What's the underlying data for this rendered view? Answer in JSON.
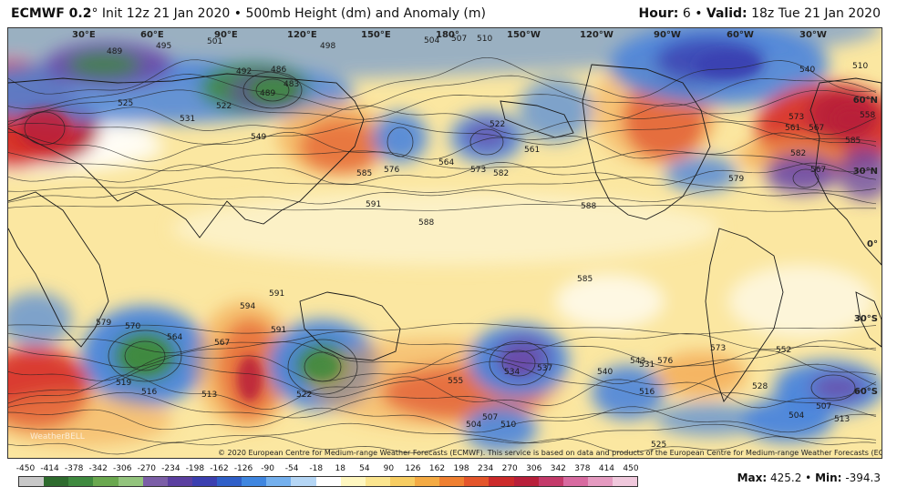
{
  "header": {
    "model": "ECMWF 0.2",
    "degree": "°",
    "init": "Init 12z 21 Jan 2020",
    "bullet": "•",
    "product": "500mb Height (dm) and Anomaly (m)",
    "hour_label": "Hour:",
    "hour_value": "6",
    "valid_label": "Valid:",
    "valid_value": "18z Tue 21 Jan 2020"
  },
  "longitude_labels": [
    "30°E",
    "60°E",
    "90°E",
    "120°E",
    "150°E",
    "180°",
    "150°W",
    "120°W",
    "90°W",
    "60°W",
    "30°W"
  ],
  "latitude_labels": [
    "60°N",
    "30°N",
    "0°",
    "30°S",
    "60°S"
  ],
  "copyright": "© 2020 European Centre for Medium-range Weather Forecasts (ECMWF). This service is based on data and products of the European Centre for Medium-range Weather Forecasts (ECMWF).",
  "logo_text": "WeatherBELL",
  "colorbar": {
    "ticks": [
      "-450",
      "-414",
      "-378",
      "-342",
      "-306",
      "-270",
      "-234",
      "-198",
      "-162",
      "-126",
      "-90",
      "-54",
      "-18",
      "18",
      "54",
      "90",
      "126",
      "162",
      "198",
      "234",
      "270",
      "306",
      "342",
      "378",
      "414",
      "450"
    ],
    "colors": [
      "#c8c8c8",
      "#2e6b2e",
      "#3f8a3f",
      "#6aa84f",
      "#93c47d",
      "#7b5ea7",
      "#5b3fa0",
      "#3b3fb0",
      "#2f5fc8",
      "#3f86e0",
      "#74b0ee",
      "#b5d6f5",
      "#ffffff",
      "#fff7c0",
      "#fbe58f",
      "#f7cd62",
      "#f4aa43",
      "#ef7f30",
      "#e4552a",
      "#cc2a2a",
      "#b81f3a",
      "#c43a6a",
      "#d86aa0",
      "#e59ac0",
      "#f0c8dc"
    ]
  },
  "stats": {
    "max_label": "Max:",
    "max_value": "425.2",
    "min_label": "Min:",
    "min_value": "-394.3"
  },
  "contour_labels": [
    "489",
    "495",
    "501",
    "498",
    "504",
    "507",
    "510",
    "492",
    "486",
    "483",
    "489",
    "522",
    "531",
    "549",
    "525",
    "585",
    "576",
    "564",
    "573",
    "582",
    "522",
    "561",
    "591",
    "588",
    "585",
    "588",
    "591",
    "579",
    "570",
    "564",
    "567",
    "594",
    "591",
    "519",
    "516",
    "513",
    "522",
    "555",
    "534",
    "537",
    "540",
    "543",
    "510",
    "504",
    "507",
    "528",
    "531",
    "516",
    "504",
    "507",
    "513",
    "525",
    "540",
    "573",
    "588",
    "558",
    "585",
    "582",
    "573",
    "576",
    "552",
    "561",
    "567",
    "567",
    "579",
    "510"
  ],
  "anomaly_colors": {
    "background": "#fbe7a1",
    "pale": "#fdf4cf",
    "white": "#ffffff",
    "red": "#d8342a",
    "dark_red": "#b8203a",
    "orange": "#f2a04a",
    "blue": "#4a84dc",
    "dark_blue": "#3b3fb0",
    "purple": "#6b4aa8",
    "green": "#3f8a3f",
    "land_line": "#1a1a1a",
    "contour_line": "#222222"
  }
}
